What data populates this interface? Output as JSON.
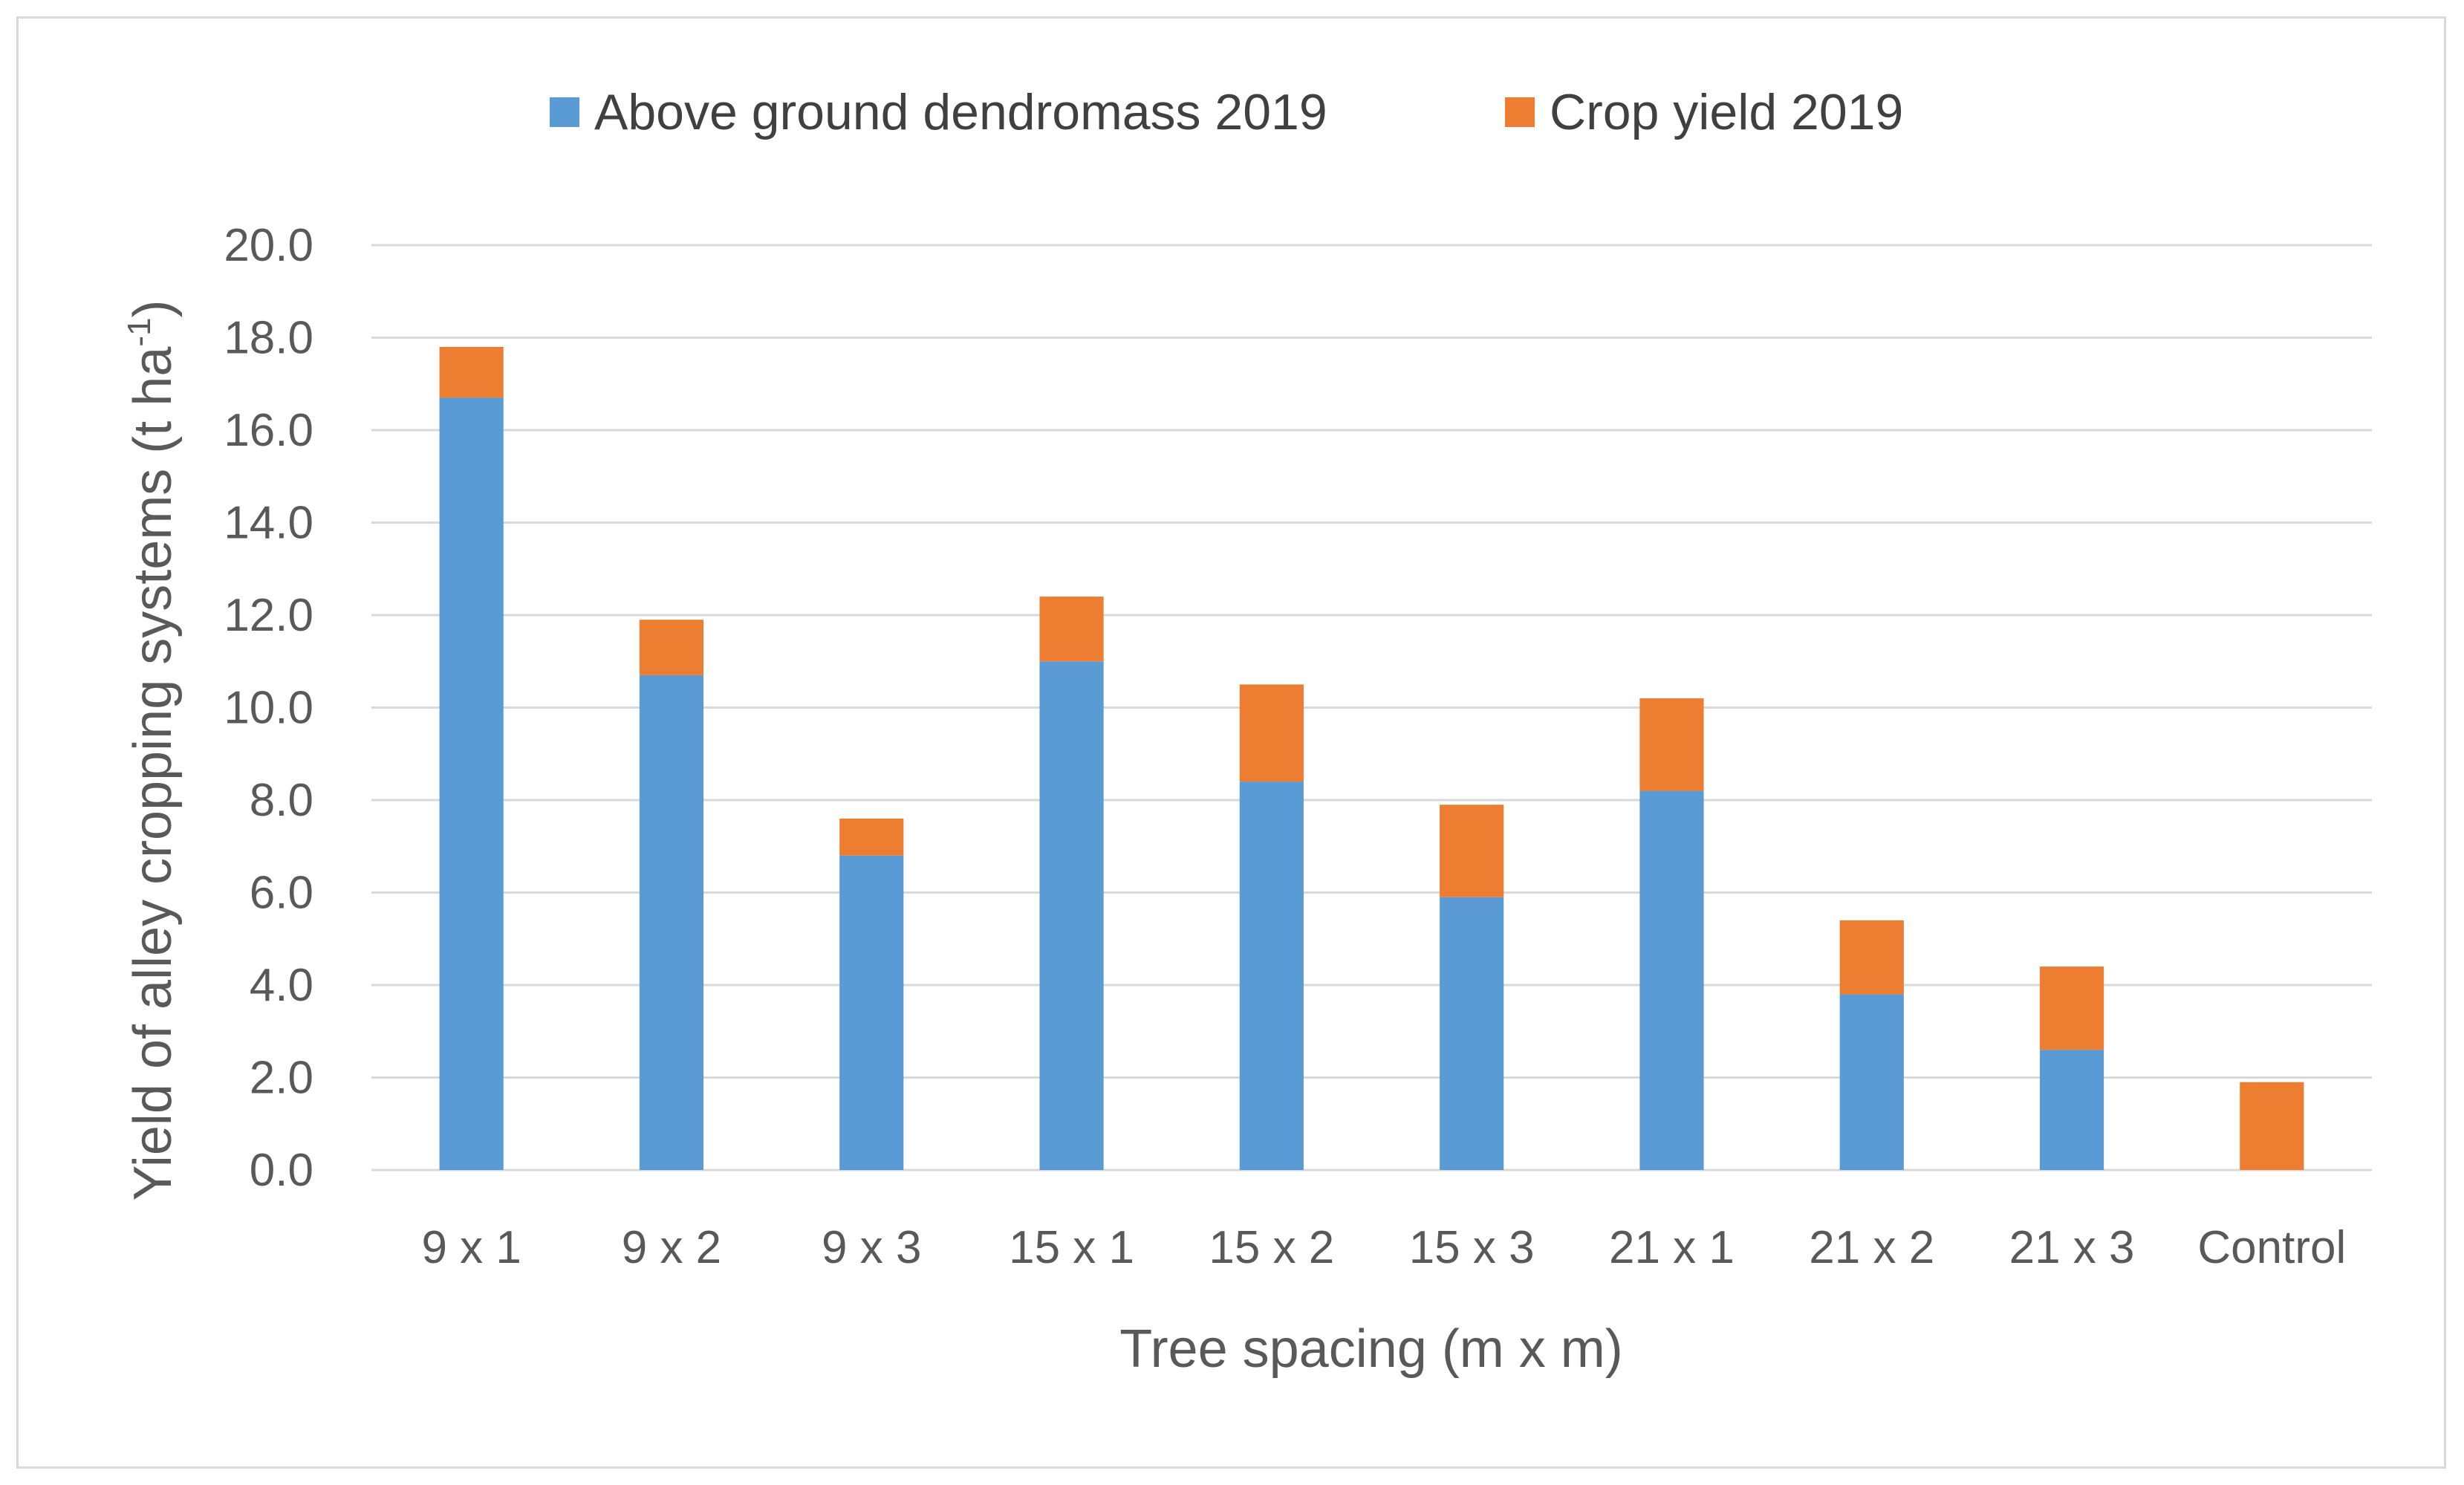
{
  "chart_data": {
    "type": "bar",
    "stacked": true,
    "categories": [
      "9 x 1",
      "9 x 2",
      "9 x 3",
      "15 x 1",
      "15 x 2",
      "15 x 3",
      "21 x 1",
      "21 x 2",
      "21 x 3",
      "Control"
    ],
    "series": [
      {
        "name": "Above ground dendromass 2019",
        "color": "#5b9bd5",
        "values": [
          16.7,
          10.7,
          6.8,
          11.0,
          8.4,
          5.9,
          8.2,
          3.8,
          2.6,
          0.0
        ]
      },
      {
        "name": "Crop yield 2019",
        "color": "#ed7d31",
        "values": [
          1.1,
          1.2,
          0.8,
          1.4,
          2.1,
          2.0,
          2.0,
          1.6,
          1.8,
          1.9
        ]
      }
    ],
    "title": "",
    "xlabel": "Tree spacing (m x m)",
    "ylabel_main": "Yield of alley cropping systems (t ha",
    "ylabel_sup": "-1",
    "ylabel_end": ")",
    "ylim": [
      0,
      20
    ],
    "ytick_step": 2,
    "yticks": [
      "0.0",
      "2.0",
      "4.0",
      "6.0",
      "8.0",
      "10.0",
      "12.0",
      "14.0",
      "16.0",
      "18.0",
      "20.0"
    ],
    "grid": true,
    "legend_position": "top-center"
  }
}
